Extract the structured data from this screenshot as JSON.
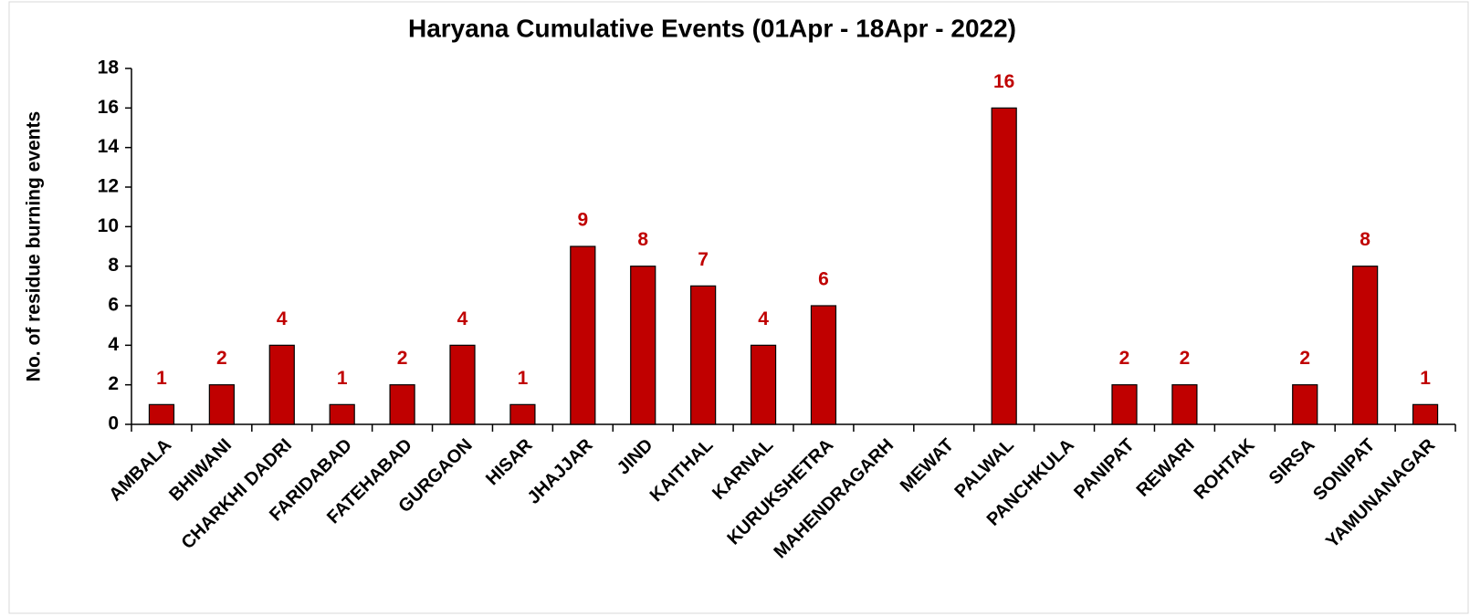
{
  "chart_data": {
    "type": "bar",
    "title": "Haryana Cumulative Events (01Apr - 18Apr - 2022)",
    "y_label": "No. of residue burning events",
    "categories": [
      "AMBALA",
      "BHIWANI",
      "CHARKHI DADRI",
      "FARIDABAD",
      "FATEHABAD",
      "GURGAON",
      "HISAR",
      "JHAJJAR",
      "JIND",
      "KAITHAL",
      "KARNAL",
      "KURUKSHETRA",
      "MAHENDRAGARH",
      "MEWAT",
      "PALWAL",
      "PANCHKULA",
      "PANIPAT",
      "REWARI",
      "ROHTAK",
      "SIRSA",
      "SONIPAT",
      "YAMUNANAGAR"
    ],
    "values": [
      1,
      2,
      4,
      1,
      2,
      4,
      1,
      9,
      8,
      7,
      4,
      6,
      0,
      0,
      16,
      0,
      2,
      2,
      0,
      2,
      8,
      1
    ],
    "color": "#c00000",
    "label_color": "#c00000",
    "ylim": [
      0,
      18
    ],
    "yticks": [
      0,
      2,
      4,
      6,
      8,
      10,
      12,
      14,
      16,
      18
    ],
    "grid": false
  }
}
